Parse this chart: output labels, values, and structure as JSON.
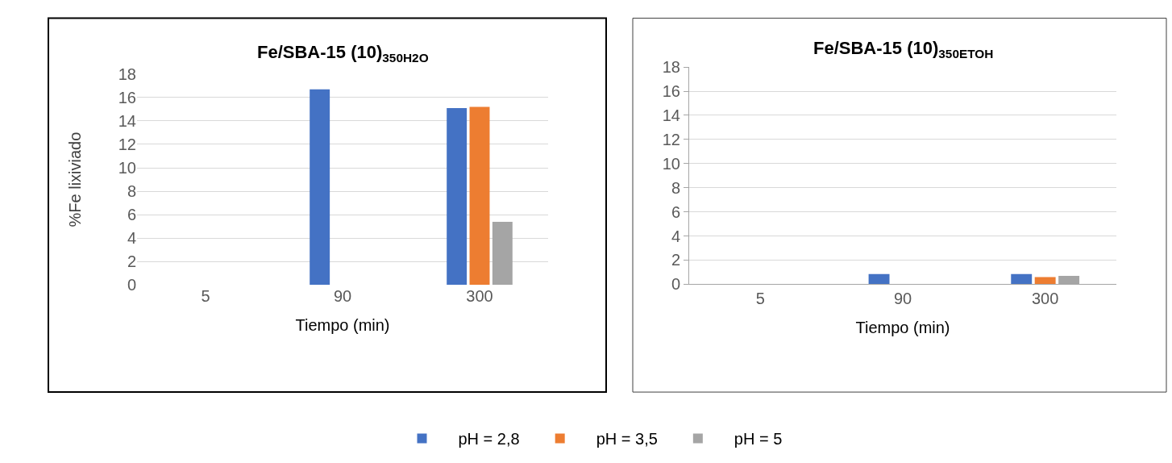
{
  "chart_data": [
    {
      "type": "bar",
      "title": "Fe/SBA-15 (10)$_{350H2O}$",
      "xlabel": "Tiempo (min)",
      "ylabel": "%Fe lixiviado",
      "categories": [
        "5",
        "90",
        "300"
      ],
      "ylim": [
        0,
        18
      ],
      "yticks": [
        0,
        2,
        4,
        6,
        8,
        10,
        12,
        14,
        16,
        18
      ],
      "grid": "y",
      "legend": "bottom",
      "series": [
        {
          "name": "pH = 2,8",
          "color": "#4472c4",
          "values": [
            0,
            16.7,
            15.1
          ]
        },
        {
          "name": "pH = 3,5",
          "color": "#ed7d31",
          "values": [
            0,
            0,
            15.2
          ]
        },
        {
          "name": "pH = 5",
          "color": "#a5a5a5",
          "values": [
            0,
            0,
            5.4
          ]
        }
      ]
    },
    {
      "type": "bar",
      "title": "Fe/SBA-15 (10)$_{350ETOH}$",
      "xlabel": "Tiempo (min)",
      "categories": [
        "5",
        "90",
        "300"
      ],
      "ylim": [
        0,
        18
      ],
      "yticks": [
        0,
        2,
        4,
        6,
        8,
        10,
        12,
        14,
        16,
        18
      ],
      "grid": "y",
      "legend": "bottom",
      "series": [
        {
          "name": "pH = 2,8",
          "color": "#4472c4",
          "values": [
            0,
            0.85,
            0.85
          ]
        },
        {
          "name": "pH = 3,5",
          "color": "#ed7d31",
          "values": [
            0,
            0,
            0.6
          ]
        },
        {
          "name": "pH = 5",
          "color": "#a5a5a5",
          "values": [
            0,
            0,
            0.7
          ]
        }
      ]
    }
  ]
}
